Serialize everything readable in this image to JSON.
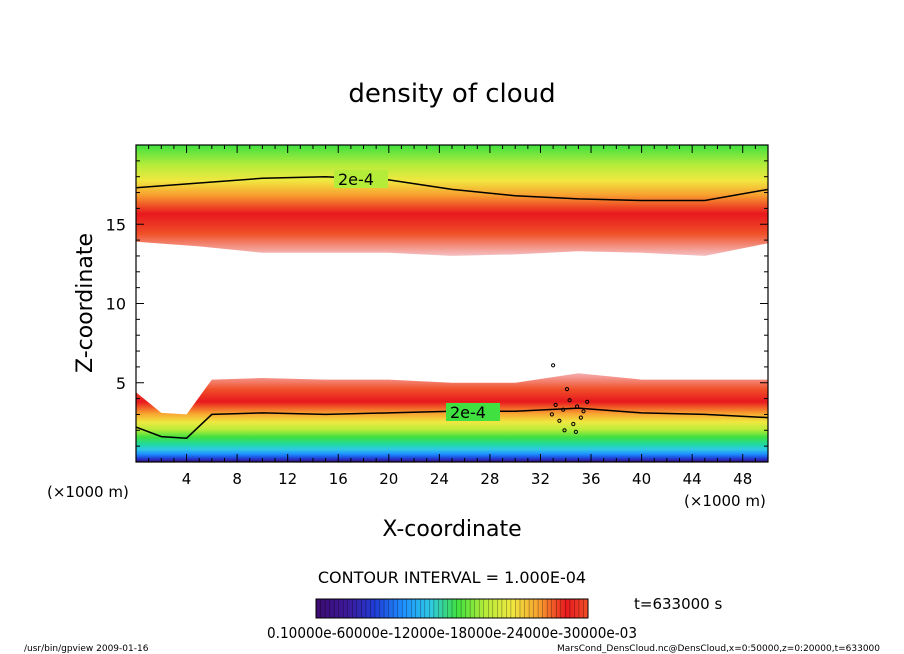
{
  "chart_data": {
    "type": "heatmap",
    "title": "density of cloud",
    "xlabel": "X-coordinate",
    "ylabel": "Z-coordinate",
    "x_unit_label": "(×1000 m)",
    "z_unit_label": "(×1000 m)",
    "xlim": [
      0,
      50
    ],
    "ylim": [
      0,
      20
    ],
    "x_ticks": [
      4,
      8,
      12,
      16,
      20,
      24,
      28,
      32,
      36,
      40,
      44,
      48
    ],
    "y_ticks": [
      5,
      10,
      15
    ],
    "contour_interval_text": "CONTOUR INTERVAL = 1.000E-04",
    "contour_label": "2e-4",
    "time_label": "t=633000 s",
    "colorbar_ticks_text": "0.10000e-60000e-12000e-18000e-24000e-30000e-03",
    "upper_layer_profile": {
      "x": [
        0,
        5,
        10,
        15,
        20,
        25,
        30,
        35,
        40,
        45,
        50
      ],
      "base_z": [
        13.9,
        13.6,
        13.2,
        13.2,
        13.2,
        13.0,
        13.1,
        13.3,
        13.2,
        13.0,
        13.8
      ],
      "peak_z": [
        15.2,
        15.5,
        15.6,
        15.5,
        15.2,
        14.6,
        14.5,
        14.5,
        14.5,
        14.4,
        14.7
      ],
      "contour_2e4_z": [
        17.3,
        17.6,
        17.9,
        18.0,
        17.8,
        17.2,
        16.8,
        16.6,
        16.5,
        16.5,
        17.2
      ]
    },
    "lower_layer_profile": {
      "x": [
        0,
        2,
        4,
        6,
        10,
        15,
        20,
        25,
        30,
        35,
        40,
        45,
        50
      ],
      "top_z": [
        4.4,
        3.1,
        3.0,
        5.2,
        5.3,
        5.2,
        5.2,
        5.0,
        5.0,
        5.6,
        5.2,
        5.2,
        5.2
      ],
      "contour_2e4_z": [
        2.2,
        1.6,
        1.5,
        3.0,
        3.1,
        3.0,
        3.1,
        3.2,
        3.2,
        3.4,
        3.1,
        3.0,
        2.8
      ]
    },
    "colormap": [
      "#3d0a6e",
      "#3b1a9c",
      "#1f3fd8",
      "#1e90ff",
      "#2ec8e6",
      "#20d9a0",
      "#40e040",
      "#b5ec3a",
      "#f0e840",
      "#f8a030",
      "#f05028",
      "#e8181e",
      "#f5a0a8"
    ]
  },
  "footer": {
    "program": "/usr/bin/gpview   2009-01-16",
    "source": "MarsCond_DensCloud.nc@DensCloud,x=0:50000,z=0:20000,t=633000"
  }
}
